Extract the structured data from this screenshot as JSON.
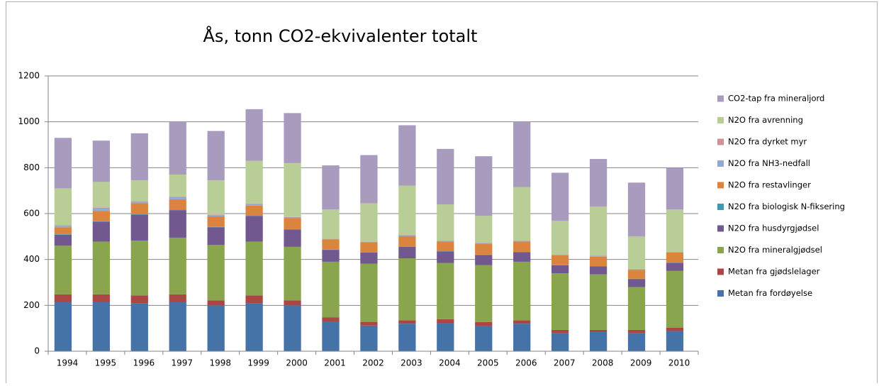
{
  "chart_data": {
    "type": "stacked_bar",
    "title": "Ås, tonn CO2-ekvivalenter totalt",
    "categories": [
      "1994",
      "1995",
      "1996",
      "1997",
      "1998",
      "1999",
      "2000",
      "2001",
      "2002",
      "2003",
      "2004",
      "2005",
      "2006",
      "2007",
      "2008",
      "2009",
      "2010"
    ],
    "series": [
      {
        "name": "Metan fra fordøyelse",
        "color": "#4572a7",
        "values": [
          215,
          215,
          210,
          215,
          200,
          210,
          200,
          130,
          112,
          120,
          122,
          110,
          120,
          80,
          85,
          80,
          88
        ]
      },
      {
        "name": "Metan fra gjødslelager",
        "color": "#aa4643",
        "values": [
          33,
          33,
          33,
          33,
          22,
          33,
          22,
          18,
          16,
          15,
          18,
          17,
          15,
          13,
          8,
          13,
          14
        ]
      },
      {
        "name": "N2O fra mineralgjødsel",
        "color": "#89a54e",
        "values": [
          212,
          230,
          239,
          247,
          241,
          235,
          233,
          242,
          254,
          270,
          245,
          248,
          255,
          247,
          242,
          187,
          248
        ]
      },
      {
        "name": "N2O fra husdyrgjødsel",
        "color": "#71588f",
        "values": [
          48,
          87,
          113,
          120,
          77,
          112,
          75,
          52,
          48,
          50,
          50,
          45,
          42,
          35,
          35,
          35,
          35
        ]
      },
      {
        "name": "N2O fra biologisk N-fiksering",
        "color": "#4198af",
        "values": [
          2,
          2,
          2,
          3,
          2,
          2,
          2,
          1,
          1,
          1,
          1,
          1,
          1,
          1,
          1,
          1,
          1
        ]
      },
      {
        "name": "N2O fra restavlinger",
        "color": "#db843d",
        "values": [
          30,
          45,
          48,
          44,
          46,
          43,
          48,
          44,
          44,
          46,
          42,
          47,
          45,
          42,
          41,
          39,
          44
        ]
      },
      {
        "name": "N2O fra NH3-nedfall",
        "color": "#93a9cf",
        "values": [
          7,
          13,
          7,
          11,
          6,
          7,
          3,
          2,
          2,
          4,
          3,
          4,
          3,
          3,
          4,
          3,
          2
        ]
      },
      {
        "name": "N2O fra dyrket myr",
        "color": "#d19392",
        "values": [
          2,
          2,
          2,
          2,
          2,
          2,
          2,
          1,
          1,
          2,
          1,
          2,
          1,
          1,
          1,
          1,
          1
        ]
      },
      {
        "name": "N2O fra avrenning",
        "color": "#b9cd96",
        "values": [
          161,
          111,
          91,
          95,
          149,
          186,
          235,
          128,
          167,
          214,
          158,
          116,
          233,
          146,
          213,
          141,
          185
        ]
      },
      {
        "name": "CO2-tap fra mineraljord",
        "color": "#a99bbd",
        "values": [
          220,
          180,
          205,
          230,
          215,
          225,
          218,
          192,
          210,
          263,
          242,
          260,
          285,
          210,
          208,
          235,
          182
        ]
      }
    ],
    "ylim": [
      0,
      1200
    ],
    "yticks": [
      0,
      200,
      400,
      600,
      800,
      1000,
      1200
    ],
    "grid": true,
    "legend": "right"
  }
}
